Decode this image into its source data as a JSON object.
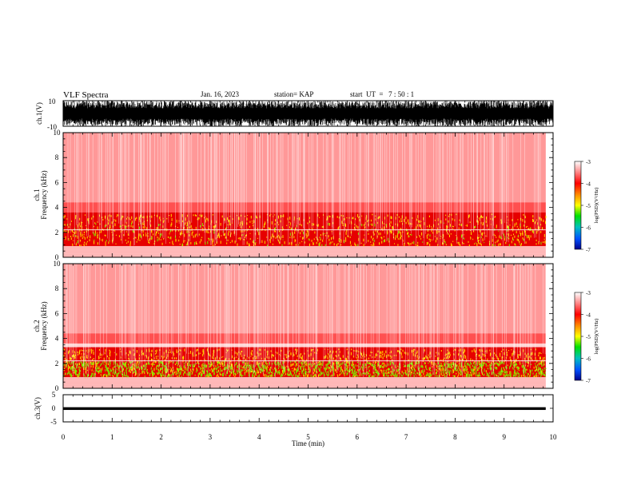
{
  "header": {
    "title": "VLF Spectra",
    "date": "Jan. 16, 2023",
    "station": "station= KAP",
    "start_ut": "start  UT  =   7 : 50 : 1"
  },
  "colors": {
    "spectrum_low": "#ff9e9e",
    "spectrum_high": "#e60000",
    "band_yellow": "#ffd800",
    "band_green": "#7dea00",
    "waveform": "#000000"
  },
  "chart_data": [
    {
      "type": "line",
      "panel": "ch1-waveform",
      "ylabel": "ch.1(V)",
      "ylim": [
        -10,
        10
      ],
      "ytick_labels": [
        "10",
        "-10"
      ],
      "xlim": [
        0,
        10
      ],
      "description_values": {
        "min": -10,
        "max": 10
      }
    },
    {
      "type": "heatmap",
      "panel": "ch1-spectrogram",
      "ylabel": "ch.1\nFrequency (kHz)",
      "ylim": [
        0,
        10
      ],
      "yticks": [
        0,
        2,
        4,
        6,
        8,
        10
      ],
      "ytick_labels": [
        "0",
        "2",
        "4",
        "6",
        "8",
        "10"
      ],
      "xlim": [
        0,
        9.85
      ],
      "bands_khz": [
        {
          "from": 0.0,
          "to": 0.9,
          "level": "low"
        },
        {
          "from": 0.9,
          "to": 3.6,
          "level": "high"
        },
        {
          "from": 3.6,
          "to": 10.0,
          "level": "medium"
        }
      ],
      "colorbar": {
        "label": "log(PSD)(V²/Hz)",
        "range": [
          -7,
          -3
        ],
        "tick_labels": [
          "-3",
          "-4",
          "-5",
          "-6",
          "-7"
        ]
      }
    },
    {
      "type": "heatmap",
      "panel": "ch2-spectrogram",
      "ylabel": "ch.2\nFrequency (kHz)",
      "ylim": [
        0,
        10
      ],
      "yticks": [
        0,
        2,
        4,
        6,
        8,
        10
      ],
      "ytick_labels": [
        "0",
        "2",
        "4",
        "6",
        "8",
        "10"
      ],
      "xlim": [
        0,
        9.85
      ],
      "bands_khz": [
        {
          "from": 0.0,
          "to": 0.9,
          "level": "low"
        },
        {
          "from": 0.9,
          "to": 3.3,
          "level": "very-high"
        },
        {
          "from": 3.3,
          "to": 10.0,
          "level": "medium"
        }
      ],
      "colorbar": {
        "label": "log(PSD)(V²/Hz)",
        "range": [
          -7,
          -3
        ],
        "tick_labels": [
          "-3",
          "-4",
          "-5",
          "-6",
          "-7"
        ]
      }
    },
    {
      "type": "line",
      "panel": "ch3-waveform",
      "ylabel": "ch.3(V)",
      "ylim": [
        -5,
        5
      ],
      "ytick_labels": [
        "5",
        "0",
        "-5"
      ],
      "xlim": [
        0,
        10
      ],
      "xticks": [
        0,
        1,
        2,
        3,
        4,
        5,
        6,
        7,
        8,
        9,
        10
      ],
      "xtick_labels": [
        "0",
        "1",
        "2",
        "3",
        "4",
        "5",
        "6",
        "7",
        "8",
        "9",
        "10"
      ],
      "xlabel": "Time (min)",
      "level_band": [
        -0.6,
        0.4
      ]
    }
  ]
}
